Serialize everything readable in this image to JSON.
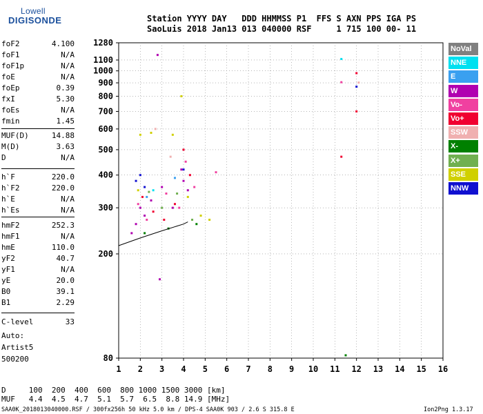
{
  "logo": {
    "top": "Lowell",
    "bottom": "DIGISONDE"
  },
  "header": {
    "line1": "Station YYYY DAY   DDD HHMMSS P1  FFS S AXN PPS IGA PS",
    "line2": "SaoLuis 2018 Jan13 013 040000 RSF     1 715 100 00- 11"
  },
  "params": [
    {
      "name": "foF2",
      "value": "4.100"
    },
    {
      "name": "foF1",
      "value": "N/A"
    },
    {
      "name": "foF1p",
      "value": "N/A"
    },
    {
      "name": "foE",
      "value": "N/A"
    },
    {
      "name": "foEp",
      "value": "0.39"
    },
    {
      "name": "fxI",
      "value": "5.30"
    },
    {
      "name": "foEs",
      "value": "N/A"
    },
    {
      "name": "fmin",
      "value": "1.45"
    },
    {
      "name": "MUF(D)",
      "value": "14.88"
    },
    {
      "name": "M(D)",
      "value": "3.63"
    },
    {
      "name": "D",
      "value": "N/A"
    },
    {
      "name": "h`F",
      "value": "220.0"
    },
    {
      "name": "h`F2",
      "value": "220.0"
    },
    {
      "name": "h`E",
      "value": "N/A"
    },
    {
      "name": "h`Es",
      "value": "N/A"
    },
    {
      "name": "hmF2",
      "value": "252.3"
    },
    {
      "name": "hmF1",
      "value": "N/A"
    },
    {
      "name": "hmE",
      "value": "110.0"
    },
    {
      "name": "yF2",
      "value": "40.7"
    },
    {
      "name": "yF1",
      "value": "N/A"
    },
    {
      "name": "yE",
      "value": "20.0"
    },
    {
      "name": "B0",
      "value": "39.1"
    },
    {
      "name": "B1",
      "value": "2.29"
    },
    {
      "name": "C-level",
      "value": "33"
    }
  ],
  "auto": {
    "line1": "Auto:",
    "line2": "Artist5",
    "line3": "500200"
  },
  "legend": [
    {
      "label": "NoVal",
      "color": "#808080"
    },
    {
      "label": "NNE",
      "color": "#00e0f0"
    },
    {
      "label": "E",
      "color": "#3aa0f0"
    },
    {
      "label": "W",
      "color": "#b000b0"
    },
    {
      "label": "Vo-",
      "color": "#f040a0"
    },
    {
      "label": "Vo+",
      "color": "#f00030"
    },
    {
      "label": "SSW",
      "color": "#f0b0b0"
    },
    {
      "label": "X-",
      "color": "#008000"
    },
    {
      "label": "X+",
      "color": "#70b050"
    },
    {
      "label": "SSE",
      "color": "#d0d000"
    },
    {
      "label": "NNW",
      "color": "#1010d0"
    }
  ],
  "bottom_table": {
    "line1": "D     100  200  400  600  800 1000 1500 3000 [km]",
    "line2": "MUF   4.4  4.5  4.7  5.1  5.7  6.5  8.8 14.9 [MHz]"
  },
  "footer": {
    "left": "SAA0K_2018013040000.RSF / 300fx256h 50 kHz 5.0 km / DPS-4 SAA0K 903 / 2.6 S 315.8 E",
    "right": "Ion2Png 1.3.17"
  },
  "chart_data": {
    "type": "scatter",
    "title": "",
    "xlabel": "",
    "ylabel": "",
    "xlim": [
      1,
      16
    ],
    "ylim": [
      80,
      1280
    ],
    "yscale": "log",
    "x_ticks": [
      1,
      2,
      3,
      4,
      5,
      6,
      7,
      8,
      9,
      10,
      11,
      12,
      13,
      14,
      15,
      16
    ],
    "y_ticks": [
      80,
      200,
      300,
      400,
      500,
      600,
      700,
      800,
      900,
      1000,
      1100,
      1280
    ],
    "grid": true,
    "legend_position": "right",
    "series": [
      {
        "name": "W",
        "color": "#b000b0",
        "points": [
          [
            2.0,
            300
          ],
          [
            2.2,
            280
          ],
          [
            2.5,
            320
          ],
          [
            3.0,
            360
          ],
          [
            3.5,
            300
          ],
          [
            3.9,
            420
          ],
          [
            4.0,
            380
          ],
          [
            4.2,
            350
          ],
          [
            2.8,
            1150
          ],
          [
            2.9,
            160
          ],
          [
            1.8,
            260
          ],
          [
            1.6,
            240
          ]
        ]
      },
      {
        "name": "Vo-",
        "color": "#f040a0",
        "points": [
          [
            1.9,
            310
          ],
          [
            2.3,
            270
          ],
          [
            3.2,
            340
          ],
          [
            3.8,
            300
          ],
          [
            4.1,
            450
          ],
          [
            4.5,
            360
          ],
          [
            5.5,
            410
          ],
          [
            11.3,
            905
          ]
        ]
      },
      {
        "name": "Vo+",
        "color": "#f00030",
        "points": [
          [
            2.1,
            330
          ],
          [
            2.6,
            290
          ],
          [
            3.1,
            270
          ],
          [
            3.6,
            310
          ],
          [
            4.0,
            500
          ],
          [
            4.3,
            400
          ],
          [
            11.3,
            470
          ],
          [
            12.0,
            700
          ],
          [
            12.0,
            980
          ]
        ]
      },
      {
        "name": "SSE",
        "color": "#d0d000",
        "points": [
          [
            2.0,
            570
          ],
          [
            2.5,
            580
          ],
          [
            3.5,
            570
          ],
          [
            3.9,
            800
          ],
          [
            4.2,
            330
          ],
          [
            4.8,
            280
          ],
          [
            5.2,
            270
          ],
          [
            1.9,
            350
          ]
        ]
      },
      {
        "name": "NNW",
        "color": "#1010d0",
        "points": [
          [
            1.8,
            380
          ],
          [
            2.0,
            400
          ],
          [
            2.2,
            360
          ],
          [
            4.0,
            420
          ],
          [
            12.0,
            870
          ]
        ]
      },
      {
        "name": "X+",
        "color": "#70b050",
        "points": [
          [
            2.4,
            345
          ],
          [
            3.0,
            300
          ],
          [
            3.7,
            340
          ],
          [
            4.4,
            270
          ]
        ]
      },
      {
        "name": "X-",
        "color": "#008000",
        "points": [
          [
            2.2,
            240
          ],
          [
            3.3,
            250
          ],
          [
            4.6,
            260
          ],
          [
            11.5,
            82
          ]
        ]
      },
      {
        "name": "NNE",
        "color": "#00e0f0",
        "points": [
          [
            2.6,
            350
          ],
          [
            11.3,
            1110
          ]
        ]
      },
      {
        "name": "E",
        "color": "#3aa0f0",
        "points": [
          [
            2.3,
            330
          ],
          [
            3.6,
            390
          ]
        ]
      },
      {
        "name": "SSW",
        "color": "#f0b0b0",
        "points": [
          [
            2.7,
            600
          ],
          [
            3.4,
            470
          ],
          [
            12.1,
            902
          ]
        ]
      }
    ],
    "trace_line": {
      "name": "",
      "points": [
        [
          1.0,
          215
        ],
        [
          2.0,
          230
        ],
        [
          3.0,
          245
        ],
        [
          4.0,
          260
        ],
        [
          4.2,
          265
        ]
      ]
    }
  }
}
